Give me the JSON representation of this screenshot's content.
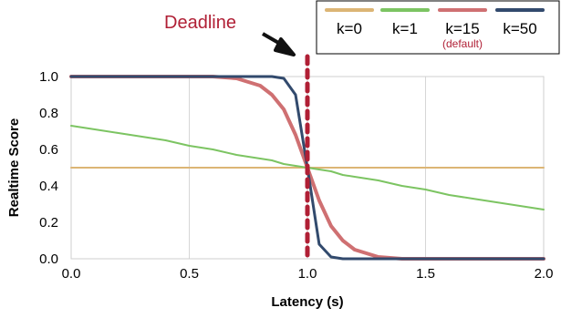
{
  "chart_data": {
    "type": "line",
    "xlabel": "Latency (s)",
    "ylabel": "Realtime Score",
    "xlim": [
      0,
      2
    ],
    "ylim": [
      0,
      1
    ],
    "x_ticks": [
      "0.0",
      "0.5",
      "1.0",
      "1.5",
      "2.0"
    ],
    "y_ticks": [
      "0.0",
      "0.2",
      "0.4",
      "0.6",
      "0.8",
      "1.0"
    ],
    "grid": "vertical",
    "legend_position": "top-right",
    "x": [
      0.0,
      0.1,
      0.2,
      0.3,
      0.4,
      0.5,
      0.6,
      0.7,
      0.8,
      0.85,
      0.9,
      0.95,
      1.0,
      1.05,
      1.1,
      1.15,
      1.2,
      1.3,
      1.4,
      1.5,
      1.6,
      1.7,
      1.8,
      1.9,
      2.0
    ],
    "series": [
      {
        "name": "k=0",
        "note": "",
        "color": "#dcb575",
        "width": 2,
        "values": [
          0.5,
          0.5,
          0.5,
          0.5,
          0.5,
          0.5,
          0.5,
          0.5,
          0.5,
          0.5,
          0.5,
          0.5,
          0.5,
          0.5,
          0.5,
          0.5,
          0.5,
          0.5,
          0.5,
          0.5,
          0.5,
          0.5,
          0.5,
          0.5,
          0.5
        ]
      },
      {
        "name": "k=1",
        "note": "",
        "color": "#7cc462",
        "width": 2,
        "values": [
          0.73,
          0.71,
          0.69,
          0.67,
          0.65,
          0.62,
          0.6,
          0.57,
          0.55,
          0.54,
          0.52,
          0.51,
          0.5,
          0.49,
          0.48,
          0.46,
          0.45,
          0.43,
          0.4,
          0.38,
          0.35,
          0.33,
          0.31,
          0.29,
          0.27
        ]
      },
      {
        "name": "k=15",
        "note": "(default)",
        "color": "#cf7072",
        "width": 4,
        "values": [
          1.0,
          1.0,
          1.0,
          1.0,
          1.0,
          1.0,
          1.0,
          0.99,
          0.95,
          0.9,
          0.82,
          0.68,
          0.5,
          0.32,
          0.18,
          0.1,
          0.05,
          0.01,
          0.0,
          0.0,
          0.0,
          0.0,
          0.0,
          0.0,
          0.0
        ]
      },
      {
        "name": "k=50",
        "note": "",
        "color": "#324a6d",
        "width": 3,
        "values": [
          1.0,
          1.0,
          1.0,
          1.0,
          1.0,
          1.0,
          1.0,
          1.0,
          1.0,
          1.0,
          0.99,
          0.9,
          0.5,
          0.08,
          0.01,
          0.0,
          0.0,
          0.0,
          0.0,
          0.0,
          0.0,
          0.0,
          0.0,
          0.0,
          0.0
        ]
      }
    ],
    "annotations": [
      {
        "text": "Deadline",
        "x": 1.0,
        "color": "#b01f35"
      }
    ]
  }
}
